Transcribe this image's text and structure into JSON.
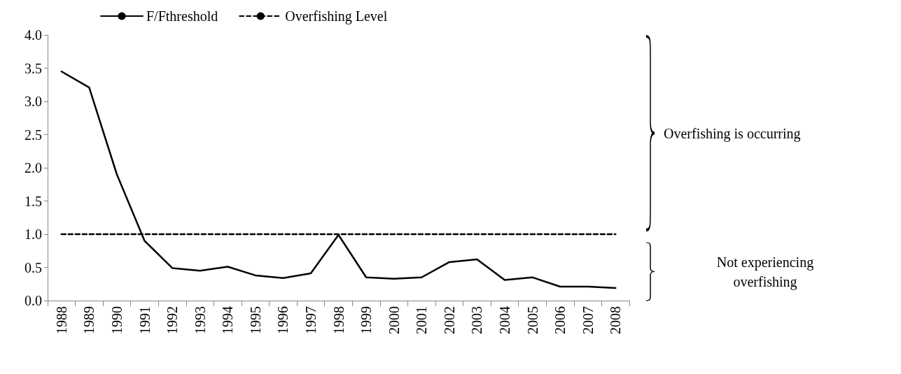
{
  "chart_data": {
    "type": "line",
    "categories": [
      "1988",
      "1989",
      "1990",
      "1991",
      "1992",
      "1993",
      "1994",
      "1995",
      "1996",
      "1997",
      "1998",
      "1999",
      "2000",
      "2001",
      "2002",
      "2003",
      "2004",
      "2005",
      "2006",
      "2007",
      "2008"
    ],
    "series": [
      {
        "name": "F/Fthreshold",
        "color": "#000000",
        "line_style": "solid",
        "values": [
          3.45,
          3.21,
          1.9,
          0.9,
          0.49,
          0.45,
          0.51,
          0.38,
          0.34,
          0.41,
          0.99,
          0.35,
          0.33,
          0.35,
          0.58,
          0.62,
          0.31,
          0.35,
          0.21,
          0.21,
          0.19
        ]
      },
      {
        "name": "Overfishing Level",
        "color": "#000000",
        "line_style": "dashed",
        "values": [
          1,
          1,
          1,
          1,
          1,
          1,
          1,
          1,
          1,
          1,
          1,
          1,
          1,
          1,
          1,
          1,
          1,
          1,
          1,
          1,
          1
        ]
      }
    ],
    "ylim": [
      0,
      4
    ],
    "yticks": [
      {
        "value": 0,
        "label": "0.0"
      },
      {
        "value": 0.5,
        "label": "0.5"
      },
      {
        "value": 1,
        "label": "1.0"
      },
      {
        "value": 1.5,
        "label": "1.5"
      },
      {
        "value": 2,
        "label": "2.0"
      },
      {
        "value": 2.5,
        "label": "2.5"
      },
      {
        "value": 3,
        "label": "3.0"
      },
      {
        "value": 3.5,
        "label": "3.5"
      },
      {
        "value": 4,
        "label": "4.0"
      }
    ],
    "grid": false,
    "legend": "top",
    "marker": "none",
    "annotations": [
      "Overfishing is occurring",
      "Not experiencing overfishing"
    ]
  }
}
